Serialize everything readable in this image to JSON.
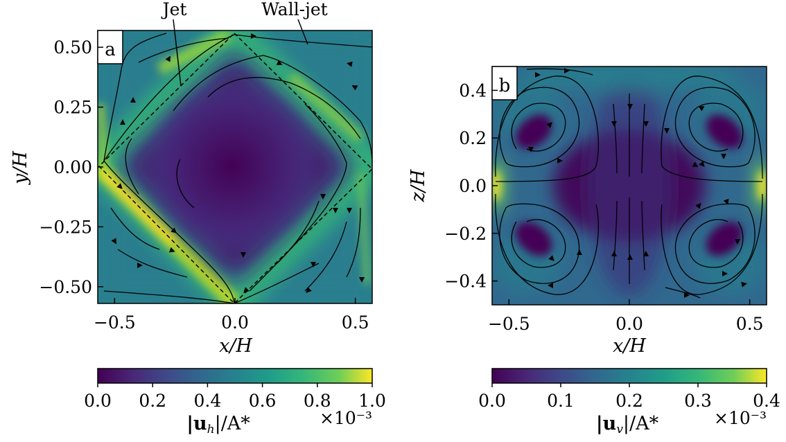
{
  "chart_data": [
    {
      "type": "heatmap",
      "panel_label": "a",
      "xlabel": "x/H",
      "ylabel": "y/H",
      "xlim": [
        -0.57,
        0.57
      ],
      "ylim": [
        -0.57,
        0.57
      ],
      "xticks": [
        -0.5,
        0.0,
        0.5
      ],
      "xtick_labels": [
        "−0.5",
        "0.0",
        "0.5"
      ],
      "yticks": [
        0.5,
        0.25,
        0.0,
        -0.25,
        -0.5
      ],
      "ytick_labels": [
        "0.50",
        "0.25",
        "0.00",
        "−0.25",
        "−0.50"
      ],
      "annotations": [
        {
          "text": "Jet"
        },
        {
          "text": "Wall-jet"
        }
      ],
      "colorbar": {
        "label": "|u_h|/A*",
        "label_main": "|u",
        "label_sub": "h",
        "label_tail": "|/A*",
        "range": [
          0.0,
          1.0
        ],
        "scale_factor": "×10⁻³",
        "ticks": [
          0.0,
          0.2,
          0.4,
          0.6,
          0.8,
          1.0
        ],
        "tick_labels": [
          "0.0",
          "0.2",
          "0.4",
          "0.6",
          "0.8",
          "1.0"
        ]
      },
      "dashed_square_corners": [
        [
          0.0,
          0.55
        ],
        [
          0.57,
          0.0
        ],
        [
          0.0,
          -0.57
        ],
        [
          -0.57,
          0.0
        ]
      ],
      "colormap": "viridis"
    },
    {
      "type": "heatmap",
      "panel_label": "b",
      "xlabel": "x/H",
      "ylabel": "z/H",
      "xlim": [
        -0.57,
        0.57
      ],
      "ylim": [
        -0.5,
        0.5
      ],
      "xticks": [
        -0.5,
        0.0,
        0.5
      ],
      "xtick_labels": [
        "−0.5",
        "0.0",
        "0.5"
      ],
      "yticks": [
        0.4,
        0.2,
        0.0,
        -0.2,
        -0.4
      ],
      "ytick_labels": [
        "0.4",
        "0.2",
        "0.0",
        "−0.2",
        "−0.4"
      ],
      "colorbar": {
        "label": "|u_v|/A*",
        "label_main": "|u",
        "label_sub": "v",
        "label_tail": "|/A*",
        "range": [
          0.0,
          0.4
        ],
        "scale_factor": "×10⁻³",
        "ticks": [
          0.0,
          0.1,
          0.2,
          0.3,
          0.4
        ],
        "tick_labels": [
          "0.0",
          "0.1",
          "0.2",
          "0.3",
          "0.4"
        ]
      },
      "colormap": "viridis"
    }
  ]
}
